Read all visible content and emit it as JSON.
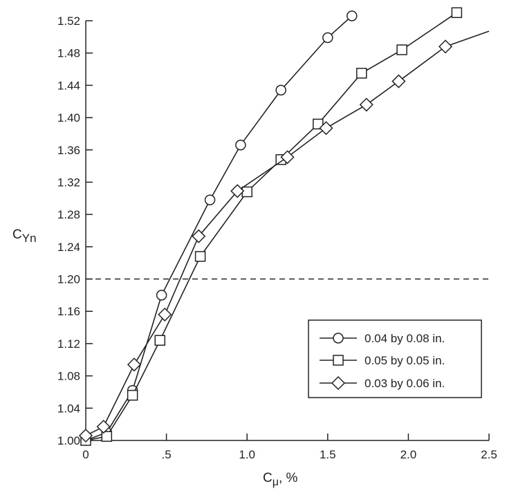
{
  "chart_data": {
    "type": "line",
    "xlabel": {
      "main": "C",
      "sub": "μ",
      "suffix": ", %"
    },
    "ylabel": {
      "main": "C",
      "sub": "Yn"
    },
    "xlim": [
      0,
      2.5
    ],
    "ylim": [
      1.0,
      1.52
    ],
    "xticks": [
      0,
      0.5,
      1.0,
      1.5,
      2.0,
      2.5
    ],
    "xtick_labels": [
      "0",
      ".5",
      "1.0",
      "1.5",
      "2.0",
      "2.5"
    ],
    "yticks": [
      1.0,
      1.04,
      1.08,
      1.12,
      1.16,
      1.2,
      1.24,
      1.28,
      1.32,
      1.36,
      1.4,
      1.44,
      1.48,
      1.52
    ],
    "ytick_labels": [
      "1.00",
      "1.04",
      "1.08",
      "1.12",
      "1.16",
      "1.20",
      "1.24",
      "1.28",
      "1.32",
      "1.36",
      "1.40",
      "1.44",
      "1.48",
      "1.52"
    ],
    "reference_line": {
      "y": 1.2,
      "style": "dashed"
    },
    "grid": false,
    "legend_position": "lower-right",
    "series": [
      {
        "name": "0.04 by 0.08 in.",
        "marker": "circle",
        "x": [
          0,
          0.13,
          0.29,
          0.47,
          0.77,
          0.96,
          1.21,
          1.5,
          1.65
        ],
        "y": [
          1.0,
          1.01,
          1.062,
          1.18,
          1.298,
          1.366,
          1.434,
          1.499,
          1.526
        ]
      },
      {
        "name": "0.05 by 0.05 in.",
        "marker": "square",
        "x": [
          0,
          0.13,
          0.29,
          0.46,
          0.71,
          1.0,
          1.21,
          1.44,
          1.71,
          1.96,
          2.3
        ],
        "y": [
          1.0,
          1.005,
          1.056,
          1.124,
          1.228,
          1.308,
          1.348,
          1.392,
          1.455,
          1.484,
          1.53
        ],
        "end": {
          "x": 2.3,
          "y": 1.53
        }
      },
      {
        "name": "0.03 by 0.06 in.",
        "marker": "diamond",
        "x": [
          0,
          0.11,
          0.3,
          0.49,
          0.7,
          0.94,
          1.25,
          1.49,
          1.74,
          1.94,
          2.23
        ],
        "y": [
          1.006,
          1.017,
          1.094,
          1.156,
          1.253,
          1.309,
          1.351,
          1.387,
          1.416,
          1.445,
          1.488
        ],
        "tail": {
          "x": 2.5,
          "y": 1.507
        }
      }
    ]
  }
}
